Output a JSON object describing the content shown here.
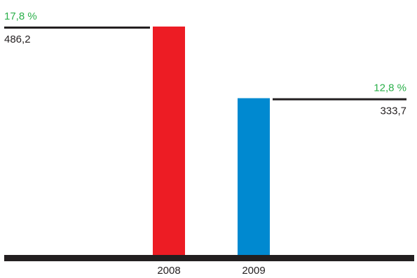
{
  "chart_data": {
    "type": "bar",
    "categories": [
      "2008",
      "2009"
    ],
    "values": [
      486.2,
      333.7
    ],
    "value_labels": [
      "486,2",
      "333,7"
    ],
    "percent_labels": [
      "17,8 %",
      "12,8 %"
    ],
    "ylim": [
      0,
      486.2
    ],
    "grid": false,
    "legend": "none",
    "colors": {
      "bars": [
        "#ed1c24",
        "#0089d0"
      ],
      "percent_text": "#2bb04a",
      "value_text": "#231f20",
      "axis": "#231f20",
      "leader_line": "#231f20"
    }
  }
}
